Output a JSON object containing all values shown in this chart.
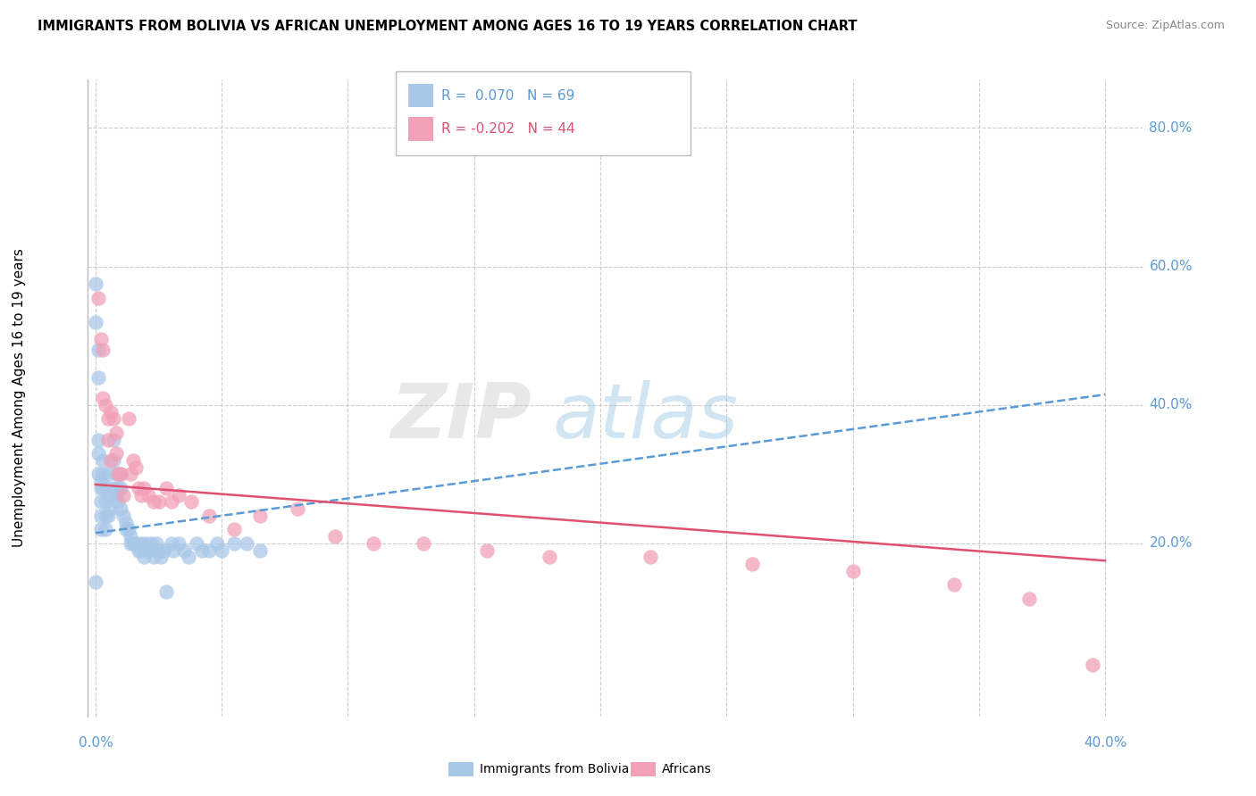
{
  "title": "IMMIGRANTS FROM BOLIVIA VS AFRICAN UNEMPLOYMENT AMONG AGES 16 TO 19 YEARS CORRELATION CHART",
  "source": "Source: ZipAtlas.com",
  "ylabel": "Unemployment Among Ages 16 to 19 years",
  "xlim": [
    -0.003,
    0.415
  ],
  "ylim": [
    -0.05,
    0.87
  ],
  "xticks_show": [
    0.0,
    0.4
  ],
  "yticks_right": [
    0.2,
    0.4,
    0.6,
    0.8
  ],
  "yticks_grid": [
    0.2,
    0.4,
    0.6,
    0.8
  ],
  "xticks_grid": [
    0.0,
    0.05,
    0.1,
    0.15,
    0.2,
    0.25,
    0.3,
    0.35,
    0.4
  ],
  "bolivia_R": 0.07,
  "bolivia_N": 69,
  "african_R": -0.202,
  "african_N": 44,
  "bolivia_color": "#a8c8e8",
  "african_color": "#f2a0b8",
  "bolivia_line_color": "#5b9bd5",
  "african_line_color": "#e05070",
  "bolivia_line_y0": 0.215,
  "bolivia_line_y1": 0.415,
  "african_line_y0": 0.285,
  "african_line_y1": 0.175,
  "bolivia_x": [
    0.0,
    0.0,
    0.0,
    0.001,
    0.001,
    0.001,
    0.001,
    0.001,
    0.002,
    0.002,
    0.002,
    0.002,
    0.002,
    0.003,
    0.003,
    0.003,
    0.004,
    0.004,
    0.004,
    0.005,
    0.005,
    0.005,
    0.006,
    0.006,
    0.007,
    0.007,
    0.007,
    0.008,
    0.008,
    0.009,
    0.009,
    0.01,
    0.01,
    0.01,
    0.011,
    0.012,
    0.012,
    0.013,
    0.014,
    0.014,
    0.015,
    0.016,
    0.017,
    0.018,
    0.018,
    0.019,
    0.02,
    0.02,
    0.021,
    0.022,
    0.023,
    0.024,
    0.025,
    0.026,
    0.027,
    0.028,
    0.03,
    0.031,
    0.033,
    0.035,
    0.037,
    0.04,
    0.042,
    0.045,
    0.048,
    0.05,
    0.055,
    0.06,
    0.065
  ],
  "bolivia_y": [
    0.575,
    0.52,
    0.145,
    0.48,
    0.44,
    0.35,
    0.33,
    0.3,
    0.29,
    0.28,
    0.26,
    0.24,
    0.22,
    0.32,
    0.3,
    0.28,
    0.26,
    0.24,
    0.22,
    0.3,
    0.28,
    0.24,
    0.27,
    0.25,
    0.35,
    0.32,
    0.28,
    0.3,
    0.27,
    0.28,
    0.26,
    0.3,
    0.28,
    0.25,
    0.24,
    0.23,
    0.22,
    0.22,
    0.21,
    0.2,
    0.2,
    0.2,
    0.19,
    0.2,
    0.19,
    0.18,
    0.2,
    0.19,
    0.19,
    0.2,
    0.18,
    0.2,
    0.19,
    0.18,
    0.19,
    0.13,
    0.2,
    0.19,
    0.2,
    0.19,
    0.18,
    0.2,
    0.19,
    0.19,
    0.2,
    0.19,
    0.2,
    0.2,
    0.19
  ],
  "african_x": [
    0.001,
    0.002,
    0.003,
    0.003,
    0.004,
    0.005,
    0.005,
    0.006,
    0.006,
    0.007,
    0.008,
    0.008,
    0.009,
    0.01,
    0.011,
    0.013,
    0.014,
    0.015,
    0.016,
    0.017,
    0.018,
    0.019,
    0.021,
    0.023,
    0.025,
    0.028,
    0.03,
    0.033,
    0.038,
    0.045,
    0.055,
    0.065,
    0.08,
    0.095,
    0.11,
    0.13,
    0.155,
    0.18,
    0.22,
    0.26,
    0.3,
    0.34,
    0.37,
    0.395
  ],
  "african_y": [
    0.555,
    0.495,
    0.48,
    0.41,
    0.4,
    0.38,
    0.35,
    0.39,
    0.32,
    0.38,
    0.36,
    0.33,
    0.3,
    0.3,
    0.27,
    0.38,
    0.3,
    0.32,
    0.31,
    0.28,
    0.27,
    0.28,
    0.27,
    0.26,
    0.26,
    0.28,
    0.26,
    0.27,
    0.26,
    0.24,
    0.22,
    0.24,
    0.25,
    0.21,
    0.2,
    0.2,
    0.19,
    0.18,
    0.18,
    0.17,
    0.16,
    0.14,
    0.12,
    0.025
  ]
}
